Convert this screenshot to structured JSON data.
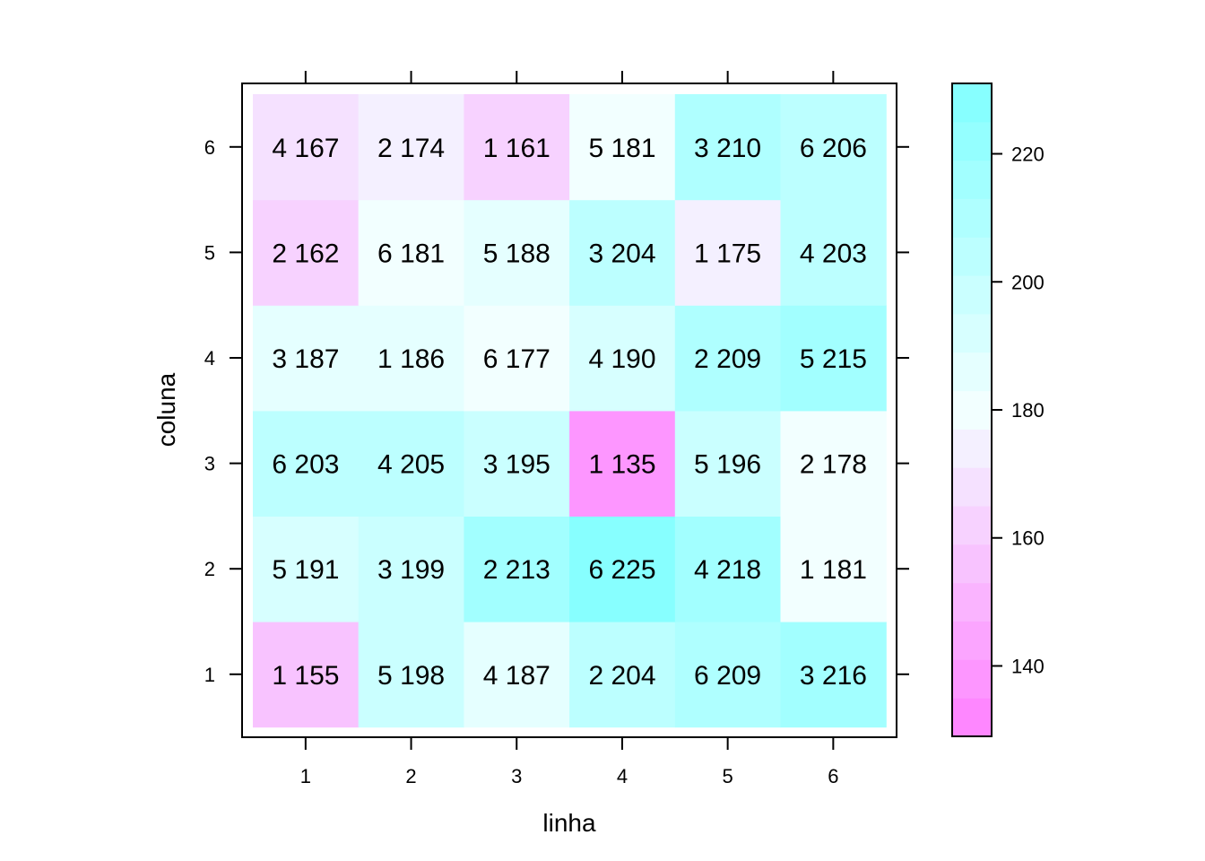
{
  "chart_data": {
    "type": "heatmap",
    "title": "",
    "xlabel": "linha",
    "ylabel": "coluna",
    "x_categories": [
      "1",
      "2",
      "3",
      "4",
      "5",
      "6"
    ],
    "y_categories": [
      "1",
      "2",
      "3",
      "4",
      "5",
      "6"
    ],
    "cells": [
      {
        "x": "1",
        "y": "1",
        "label": "1 155",
        "value": 155
      },
      {
        "x": "2",
        "y": "1",
        "label": "5 198",
        "value": 198
      },
      {
        "x": "3",
        "y": "1",
        "label": "4 187",
        "value": 187
      },
      {
        "x": "4",
        "y": "1",
        "label": "2 204",
        "value": 204
      },
      {
        "x": "5",
        "y": "1",
        "label": "6 209",
        "value": 209
      },
      {
        "x": "6",
        "y": "1",
        "label": "3 216",
        "value": 216
      },
      {
        "x": "1",
        "y": "2",
        "label": "5 191",
        "value": 191
      },
      {
        "x": "2",
        "y": "2",
        "label": "3 199",
        "value": 199
      },
      {
        "x": "3",
        "y": "2",
        "label": "2 213",
        "value": 213
      },
      {
        "x": "4",
        "y": "2",
        "label": "6 225",
        "value": 225
      },
      {
        "x": "5",
        "y": "2",
        "label": "4 218",
        "value": 218
      },
      {
        "x": "6",
        "y": "2",
        "label": "1 181",
        "value": 181
      },
      {
        "x": "1",
        "y": "3",
        "label": "6 203",
        "value": 203
      },
      {
        "x": "2",
        "y": "3",
        "label": "4 205",
        "value": 205
      },
      {
        "x": "3",
        "y": "3",
        "label": "3 195",
        "value": 195
      },
      {
        "x": "4",
        "y": "3",
        "label": "1 135",
        "value": 135
      },
      {
        "x": "5",
        "y": "3",
        "label": "5 196",
        "value": 196
      },
      {
        "x": "6",
        "y": "3",
        "label": "2 178",
        "value": 178
      },
      {
        "x": "1",
        "y": "4",
        "label": "3 187",
        "value": 187
      },
      {
        "x": "2",
        "y": "4",
        "label": "1 186",
        "value": 186
      },
      {
        "x": "3",
        "y": "4",
        "label": "6 177",
        "value": 177
      },
      {
        "x": "4",
        "y": "4",
        "label": "4 190",
        "value": 190
      },
      {
        "x": "5",
        "y": "4",
        "label": "2 209",
        "value": 209
      },
      {
        "x": "6",
        "y": "4",
        "label": "5 215",
        "value": 215
      },
      {
        "x": "1",
        "y": "5",
        "label": "2 162",
        "value": 162
      },
      {
        "x": "2",
        "y": "5",
        "label": "6 181",
        "value": 181
      },
      {
        "x": "3",
        "y": "5",
        "label": "5 188",
        "value": 188
      },
      {
        "x": "4",
        "y": "5",
        "label": "3 204",
        "value": 204
      },
      {
        "x": "5",
        "y": "5",
        "label": "1 175",
        "value": 175
      },
      {
        "x": "6",
        "y": "5",
        "label": "4 203",
        "value": 203
      },
      {
        "x": "1",
        "y": "6",
        "label": "4 167",
        "value": 167
      },
      {
        "x": "2",
        "y": "6",
        "label": "2 174",
        "value": 174
      },
      {
        "x": "3",
        "y": "6",
        "label": "1 161",
        "value": 161
      },
      {
        "x": "4",
        "y": "6",
        "label": "5 181",
        "value": 181
      },
      {
        "x": "5",
        "y": "6",
        "label": "3 210",
        "value": 210
      },
      {
        "x": "6",
        "y": "6",
        "label": "6 206",
        "value": 206
      }
    ],
    "colorbar": {
      "range": [
        129,
        231
      ],
      "step": 6,
      "ticks": [
        140,
        160,
        180,
        200,
        220
      ],
      "low_color": "#ff80ff",
      "mid_color": "#f2ffff",
      "high_color": "#80ffff",
      "mid_value": 180
    },
    "grid": false,
    "legend": "right"
  }
}
